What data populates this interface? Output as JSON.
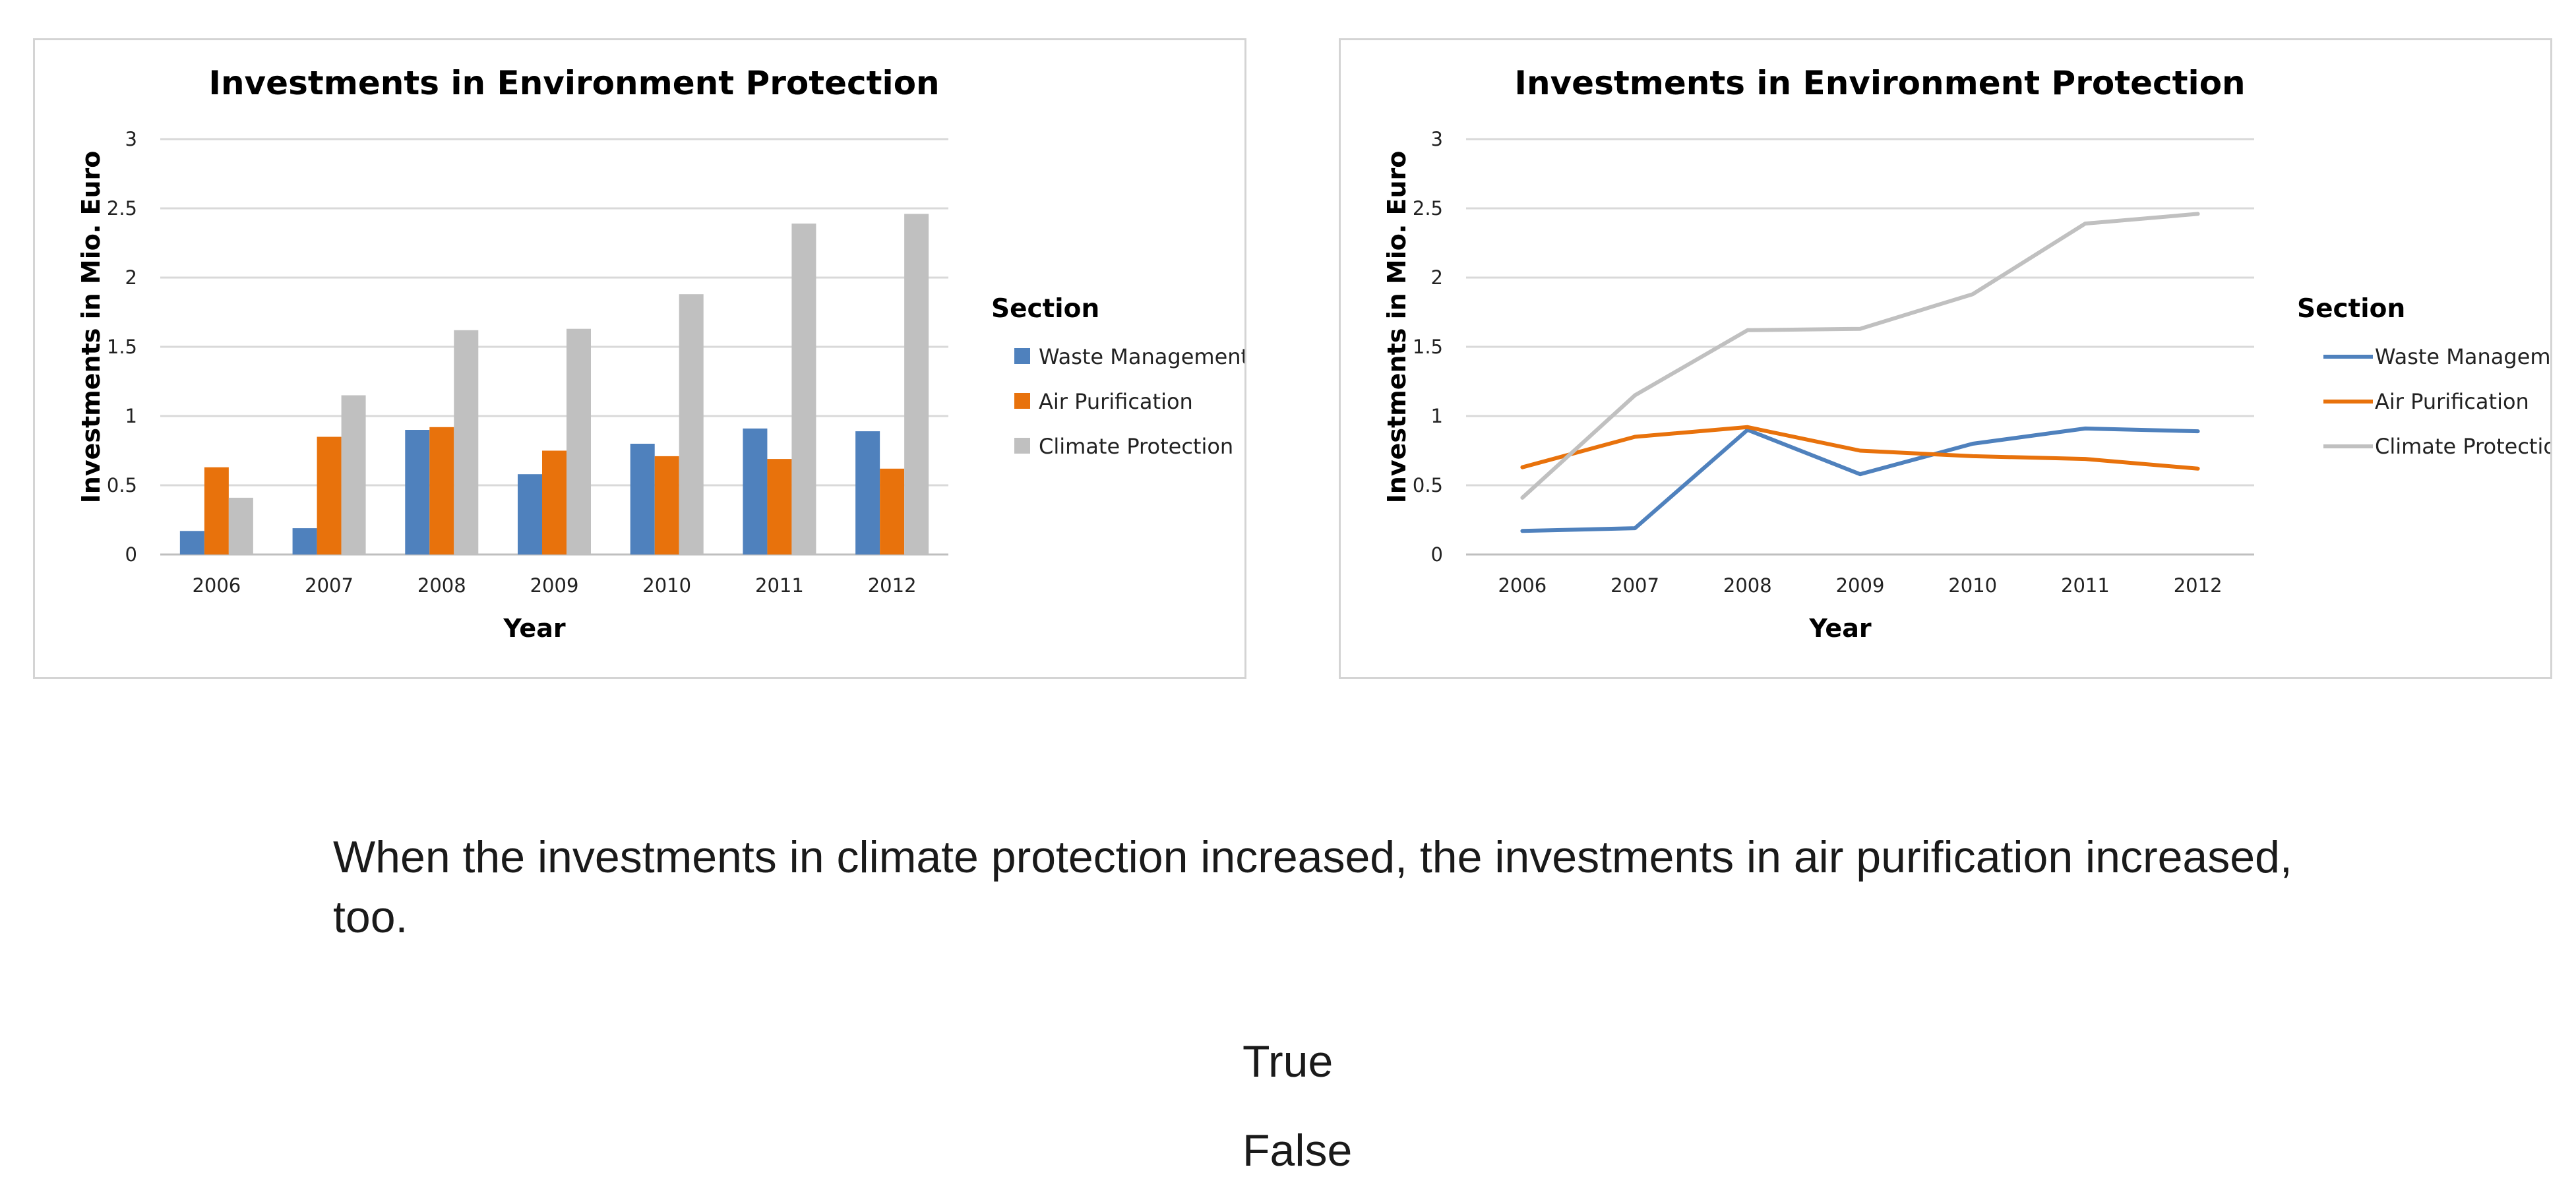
{
  "chart_data": [
    {
      "type": "bar",
      "title": "Investments in Environment Protection",
      "xlabel": "Year",
      "ylabel": "Investments in Mio. Euro",
      "ylim": [
        0,
        3
      ],
      "yticks": [
        "0",
        "0.5",
        "1",
        "1.5",
        "2",
        "2.5",
        "3"
      ],
      "grid": true,
      "legend_title": "Section",
      "legend_position": "right",
      "categories": [
        "2006",
        "2007",
        "2008",
        "2009",
        "2010",
        "2011",
        "2012"
      ],
      "series": [
        {
          "name": "Waste Management",
          "color": "#4f81bd",
          "values": [
            0.17,
            0.19,
            0.9,
            0.58,
            0.8,
            0.91,
            0.89
          ]
        },
        {
          "name": "Air Purification",
          "color": "#e8720c",
          "values": [
            0.63,
            0.85,
            0.92,
            0.75,
            0.71,
            0.69,
            0.62
          ]
        },
        {
          "name": "Climate Protection",
          "color": "#c0c0c0",
          "values": [
            0.41,
            1.15,
            1.62,
            1.63,
            1.88,
            2.39,
            2.46
          ]
        }
      ]
    },
    {
      "type": "line",
      "title": "Investments in Environment Protection",
      "xlabel": "Year",
      "ylabel": "Investments in Mio. Euro",
      "ylim": [
        0,
        3
      ],
      "yticks": [
        "0",
        "0.5",
        "1",
        "1.5",
        "2",
        "2.5",
        "3"
      ],
      "grid": true,
      "legend_title": "Section",
      "legend_position": "right",
      "categories": [
        "2006",
        "2007",
        "2008",
        "2009",
        "2010",
        "2011",
        "2012"
      ],
      "series": [
        {
          "name": "Waste Management",
          "color": "#4f81bd",
          "values": [
            0.17,
            0.19,
            0.9,
            0.58,
            0.8,
            0.91,
            0.89
          ]
        },
        {
          "name": "Air Purification",
          "color": "#e8720c",
          "values": [
            0.63,
            0.85,
            0.92,
            0.75,
            0.71,
            0.69,
            0.62
          ]
        },
        {
          "name": "Climate Protection",
          "color": "#c0c0c0",
          "values": [
            0.41,
            1.15,
            1.62,
            1.63,
            1.88,
            2.39,
            2.46
          ]
        }
      ]
    }
  ],
  "question": {
    "statement": "When the investments in climate protection increased, the investments in air purification increased, too."
  },
  "answers": {
    "true_label": "True",
    "false_label": "False"
  }
}
